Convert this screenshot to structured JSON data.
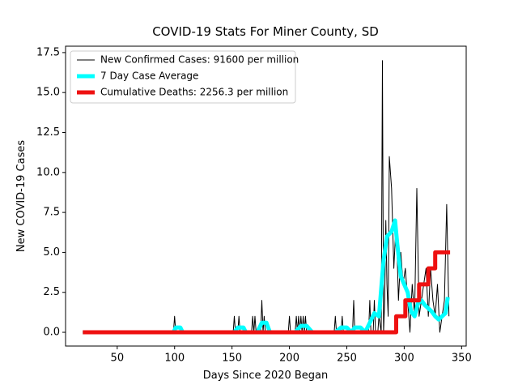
{
  "chart_data": {
    "type": "line",
    "title": "COVID-19 Stats For Miner County, SD",
    "x_label": "Days Since 2020 Began",
    "y_label": "New COVID-19 Cases",
    "xlim": [
      5,
      354
    ],
    "ylim": [
      -0.86,
      17.9
    ],
    "xticks": [
      50,
      100,
      150,
      200,
      250,
      300,
      350
    ],
    "yticks": [
      {
        "value": 0,
        "label": "0.0"
      },
      2.5,
      {
        "value": 5,
        "label": "5.0"
      },
      7.5,
      {
        "value": 10,
        "label": "10.0"
      },
      12.5,
      {
        "value": 15,
        "label": "15.0"
      },
      17.5
    ],
    "legend": "upper left",
    "series": [
      {
        "name": "New Confirmed Cases: 91600 per million",
        "color": "#000000",
        "width": 1,
        "x": [
          20,
          99,
          100,
          101,
          151,
          152,
          153,
          155,
          156,
          157,
          167,
          168,
          169,
          170,
          171,
          175,
          176,
          177,
          178,
          179,
          199,
          200,
          201,
          205,
          206,
          207,
          208,
          209,
          210,
          211,
          212,
          213,
          214,
          215,
          239,
          240,
          241,
          245,
          246,
          247,
          255,
          256,
          257,
          269,
          270,
          271,
          273,
          274,
          275,
          277,
          278,
          280,
          281,
          282,
          283,
          284,
          285,
          286,
          287,
          289,
          291,
          293,
          295,
          297,
          299,
          301,
          303,
          305,
          307,
          309,
          311,
          313,
          315,
          317,
          319,
          321,
          323,
          325,
          327,
          329,
          331,
          333,
          335,
          337,
          339
        ],
        "values": [
          0,
          0,
          1,
          0,
          0,
          1,
          0,
          0,
          1,
          0,
          0,
          1,
          0,
          1,
          0,
          0,
          2,
          0,
          1,
          0,
          0,
          1,
          0,
          0,
          1,
          0,
          1,
          0,
          1,
          0,
          1,
          0,
          1,
          0,
          0,
          1,
          0,
          0,
          1,
          0,
          0,
          2,
          0,
          0,
          2,
          0,
          0,
          2,
          0,
          0,
          1,
          0,
          17,
          0,
          2,
          7,
          3,
          1,
          11,
          9,
          4,
          7,
          2,
          5,
          3,
          4,
          2,
          0,
          3,
          1,
          9,
          1,
          2,
          3,
          4,
          1,
          4,
          2,
          1,
          3,
          0,
          1,
          2,
          8,
          1
        ]
      },
      {
        "name": "7 Day Case Average",
        "color": "#00ffff",
        "width": 5,
        "x": [
          20,
          99,
          101,
          105,
          107,
          152,
          155,
          160,
          162,
          172,
          176,
          180,
          183,
          205,
          210,
          215,
          220,
          240,
          245,
          250,
          254,
          257,
          262,
          266,
          270,
          274,
          278,
          282,
          285,
          289,
          292,
          294,
          297,
          300,
          303,
          306,
          309,
          312,
          315,
          318,
          321,
          324,
          327,
          330,
          333,
          336,
          338
        ],
        "values": [
          0,
          0,
          0.3,
          0.3,
          0,
          0,
          0.3,
          0.3,
          0,
          0,
          0.6,
          0.6,
          0,
          0,
          0.4,
          0.4,
          0,
          0,
          0.3,
          0.3,
          0,
          0.3,
          0.3,
          0,
          0.6,
          1.2,
          1.0,
          4.5,
          6.0,
          6.3,
          7.0,
          5.5,
          3.5,
          3.0,
          2.5,
          1.3,
          1.0,
          1.8,
          2.0,
          1.7,
          1.5,
          1.3,
          1.0,
          0.8,
          1.0,
          1.2,
          2.2
        ]
      },
      {
        "name": "Cumulative Deaths: 2256.3 per million",
        "color": "#ee1111",
        "width": 5,
        "x": [
          20,
          293,
          293,
          301,
          301,
          313,
          313,
          321,
          321,
          327,
          327,
          340
        ],
        "values": [
          0,
          0,
          1,
          1,
          2,
          2,
          3,
          3,
          4,
          4,
          5,
          5
        ]
      }
    ]
  }
}
